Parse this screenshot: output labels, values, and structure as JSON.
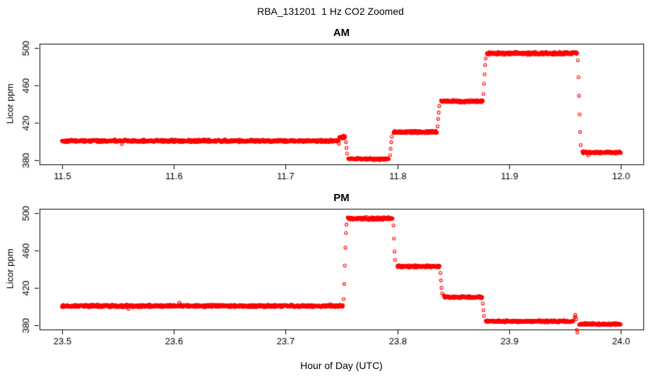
{
  "title": "RBA_131201  1 Hz CO2 Zoomed",
  "xlabel": "Hour of Day (UTC)",
  "point_color": "#FF0000",
  "axis_color": "#000000",
  "background_color": "#FFFFFF",
  "chart_data": [
    {
      "type": "scatter",
      "panel_title": "AM",
      "ylabel": "Licor ppm",
      "marker": "open-circle",
      "grid": false,
      "legend": "none",
      "sample_rate_hz": 1,
      "xlim": [
        11.5,
        12.0
      ],
      "ylim": [
        380,
        500
      ],
      "xticks": [
        11.5,
        11.6,
        11.7,
        11.8,
        11.9,
        12.0
      ],
      "xtick_labels": [
        "11.5",
        "11.6",
        "11.7",
        "11.8",
        "11.9",
        "12.0"
      ],
      "yticks": [
        380,
        420,
        460,
        500
      ],
      "ytick_labels": [
        "380",
        "420",
        "460",
        "500"
      ],
      "steps": [
        {
          "x_start": 11.5,
          "x_end": 11.748,
          "value": 400.5,
          "noise": 0.8
        },
        {
          "x_start": 11.748,
          "x_end": 11.7535,
          "value": 404.5,
          "noise": 1.0
        },
        {
          "x_start": 11.756,
          "x_end": 11.7925,
          "value": 381.0,
          "noise": 0.7
        },
        {
          "x_start": 11.7965,
          "x_end": 11.8355,
          "value": 410.0,
          "noise": 0.8
        },
        {
          "x_start": 11.839,
          "x_end": 11.8765,
          "value": 443.0,
          "noise": 0.8
        },
        {
          "x_start": 11.88,
          "x_end": 11.961,
          "value": 494.5,
          "noise": 0.9
        },
        {
          "x_start": 11.9655,
          "x_end": 12.0,
          "value": 388.0,
          "noise": 0.7
        }
      ],
      "transition_points": [
        [
          11.754,
          399
        ],
        [
          11.7545,
          393
        ],
        [
          11.755,
          387
        ],
        [
          11.7935,
          385
        ],
        [
          11.794,
          392
        ],
        [
          11.7945,
          399
        ],
        [
          11.795,
          405
        ],
        [
          11.836,
          416
        ],
        [
          11.8365,
          424
        ],
        [
          11.837,
          431
        ],
        [
          11.8375,
          438
        ],
        [
          11.877,
          451
        ],
        [
          11.8775,
          462
        ],
        [
          11.878,
          472
        ],
        [
          11.8785,
          482
        ],
        [
          11.879,
          489
        ],
        [
          11.9615,
          487
        ],
        [
          11.962,
          469
        ],
        [
          11.9625,
          449
        ],
        [
          11.963,
          429
        ],
        [
          11.9635,
          410
        ],
        [
          11.964,
          396
        ]
      ]
    },
    {
      "type": "scatter",
      "panel_title": "PM",
      "ylabel": "Licor ppm",
      "marker": "open-circle",
      "grid": false,
      "legend": "none",
      "sample_rate_hz": 1,
      "xlim": [
        23.5,
        24.0
      ],
      "ylim": [
        380,
        500
      ],
      "xticks": [
        23.5,
        23.6,
        23.7,
        23.8,
        23.9,
        24.0
      ],
      "xtick_labels": [
        "23.5",
        "23.6",
        "23.7",
        "23.8",
        "23.9",
        "24.0"
      ],
      "yticks": [
        380,
        420,
        460,
        500
      ],
      "ytick_labels": [
        "380",
        "420",
        "460",
        "500"
      ],
      "steps": [
        {
          "x_start": 23.5,
          "x_end": 23.7515,
          "value": 400.5,
          "noise": 0.8
        },
        {
          "x_start": 23.7555,
          "x_end": 23.796,
          "value": 494.5,
          "noise": 0.9
        },
        {
          "x_start": 23.8,
          "x_end": 23.838,
          "value": 443.0,
          "noise": 0.8
        },
        {
          "x_start": 23.8415,
          "x_end": 23.876,
          "value": 410.0,
          "noise": 0.7
        },
        {
          "x_start": 23.879,
          "x_end": 23.9575,
          "value": 384.0,
          "noise": 0.7
        },
        {
          "x_start": 23.9625,
          "x_end": 24.0,
          "value": 381.0,
          "noise": 0.7
        }
      ],
      "transition_points": [
        [
          23.752,
          408
        ],
        [
          23.7525,
          424
        ],
        [
          23.753,
          444
        ],
        [
          23.7535,
          463
        ],
        [
          23.754,
          479
        ],
        [
          23.7545,
          488
        ],
        [
          23.7965,
          487
        ],
        [
          23.797,
          473
        ],
        [
          23.7975,
          459
        ],
        [
          23.798,
          450
        ],
        [
          23.8385,
          436
        ],
        [
          23.839,
          428
        ],
        [
          23.8395,
          420
        ],
        [
          23.84,
          414
        ],
        [
          23.8765,
          403
        ],
        [
          23.877,
          396
        ],
        [
          23.8775,
          390
        ],
        [
          23.9585,
          388
        ],
        [
          23.959,
          391
        ],
        [
          23.9595,
          389
        ],
        [
          23.96,
          386
        ],
        [
          23.9605,
          375
        ],
        [
          23.961,
          372
        ]
      ]
    }
  ]
}
